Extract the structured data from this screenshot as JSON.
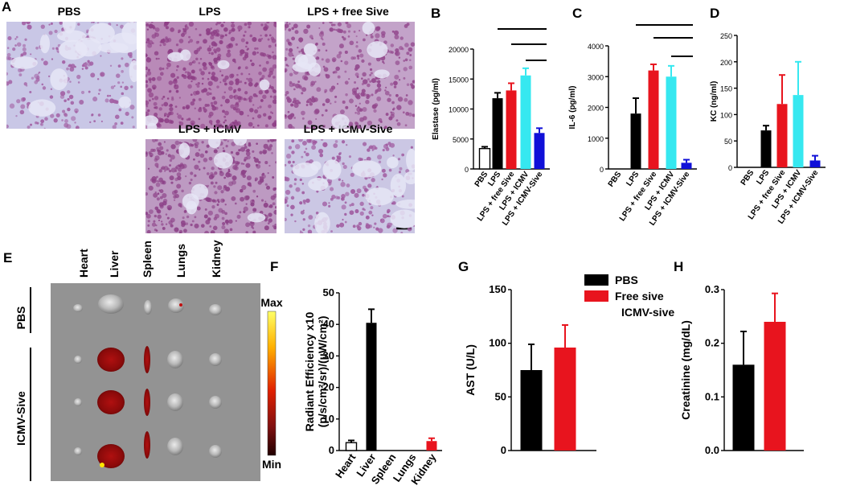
{
  "panel_letters": {
    "A": "A",
    "B": "B",
    "C": "C",
    "D": "D",
    "E": "E",
    "F": "F",
    "G": "G",
    "H": "H"
  },
  "histology": {
    "tiles": [
      {
        "label": "PBS",
        "tone": "#c9c7e6",
        "cell": "#a25fa3",
        "density": 0.35
      },
      {
        "label": "LPS",
        "tone": "#b98ab8",
        "cell": "#8e3f86",
        "density": 0.9
      },
      {
        "label": "LPS + free Sive",
        "tone": "#c3a3c9",
        "cell": "#93488d",
        "density": 0.65
      },
      {
        "label": "LPS + ICMV",
        "tone": "#bd9ac2",
        "cell": "#8d4288",
        "density": 0.75
      },
      {
        "label": "LPS + ICMV-Sive",
        "tone": "#cbc7e4",
        "cell": "#a05aa0",
        "density": 0.4
      }
    ]
  },
  "colors": {
    "black": "#000000",
    "red": "#e8141e",
    "cyan": "#36e8f0",
    "blue": "#1010d8",
    "white": "#ffffff"
  },
  "imaging": {
    "organs": [
      "Heart",
      "Liver",
      "Spleen",
      "Lungs",
      "Kidney"
    ],
    "groups": [
      "PBS",
      "ICMV-Sive"
    ],
    "scale_max": "Max",
    "scale_min": "Min"
  },
  "chart_data": [
    {
      "id": "B",
      "type": "bar",
      "categories": [
        "PBS",
        "LPS",
        "LPS + free Sive",
        "LPS + ICMV",
        "LPS + ICMV-Sive"
      ],
      "values": [
        3400,
        11800,
        13100,
        15600,
        6000
      ],
      "errors": [
        300,
        900,
        1200,
        1200,
        800
      ],
      "fills": [
        "#ffffff",
        "#000000",
        "#e8141e",
        "#36e8f0",
        "#1010d8"
      ],
      "ylabel": "Elastase (pg/ml)",
      "ylim": [
        0,
        20000
      ],
      "yticks": [
        "0",
        "5000",
        "10000",
        "15000",
        "20000"
      ],
      "grid": false
    },
    {
      "id": "C",
      "type": "bar",
      "categories": [
        "PBS",
        "LPS",
        "LPS + free Sive",
        "LPS + ICMV",
        "LPS + ICMV-Sive"
      ],
      "values": [
        0,
        1800,
        3200,
        3000,
        200
      ],
      "errors": [
        0,
        500,
        200,
        350,
        100
      ],
      "fills": [
        "#ffffff",
        "#000000",
        "#e8141e",
        "#36e8f0",
        "#1010d8"
      ],
      "ylabel": "IL-6 (pg/ml)",
      "ylim": [
        0,
        4000
      ],
      "yticks": [
        "0",
        "1000",
        "2000",
        "3000",
        "4000"
      ],
      "grid": false
    },
    {
      "id": "D",
      "type": "bar",
      "categories": [
        "PBS",
        "LPS",
        "LPS + free Sive",
        "LPS + ICMV",
        "LPS + ICMV-Sive"
      ],
      "values": [
        0,
        70,
        120,
        137,
        13
      ],
      "errors": [
        0,
        9,
        55,
        63,
        9
      ],
      "fills": [
        "#ffffff",
        "#000000",
        "#e8141e",
        "#36e8f0",
        "#1010d8"
      ],
      "ylabel": "KC (ng/ml)",
      "ylim": [
        0,
        250
      ],
      "yticks": [
        "0",
        "50",
        "100",
        "150",
        "200",
        "250"
      ],
      "grid": false
    },
    {
      "id": "F",
      "type": "bar",
      "categories": [
        "Heart",
        "Liver",
        "Spleen",
        "Lungs",
        "Kidney"
      ],
      "values": [
        2.5,
        40.5,
        0,
        0,
        3
      ],
      "errors": [
        0.7,
        4.3,
        0,
        0,
        0.9
      ],
      "fills": [
        "#ffffff",
        "#000000",
        "#ffffff",
        "#ffffff",
        "#e8141e"
      ],
      "ylabel_line1": "Radiant Efficiency x10",
      "ylabel_line2": "(p/s/cm²/sr)/(µW/cm²)",
      "ylim": [
        0,
        50
      ],
      "yticks": [
        "0",
        "10",
        "20",
        "30",
        "40",
        "50"
      ],
      "grid": false
    },
    {
      "id": "G",
      "type": "bar",
      "categories": [
        "PBS",
        "Free sive ICMV-sive"
      ],
      "values": [
        75,
        96
      ],
      "errors": [
        24,
        21
      ],
      "fills": [
        "#000000",
        "#e8141e"
      ],
      "ylabel": "AST (U/L)",
      "ylim": [
        0,
        150
      ],
      "yticks": [
        "0",
        "50",
        "100",
        "150"
      ],
      "grid": false
    },
    {
      "id": "H",
      "type": "bar",
      "categories": [
        "PBS",
        "Free sive ICMV-sive"
      ],
      "values": [
        0.16,
        0.24
      ],
      "errors": [
        0.062,
        0.053
      ],
      "fills": [
        "#000000",
        "#e8141e"
      ],
      "ylabel": "Creatinine (mg/dL)",
      "ylim": [
        0,
        0.3
      ],
      "yticks": [
        "0.0",
        "0.1",
        "0.2",
        "0.3"
      ],
      "grid": false
    }
  ],
  "legend": {
    "entries": [
      {
        "label": "PBS",
        "color": "#000000"
      },
      {
        "label": "Free sive",
        "color": "#e8141e"
      },
      {
        "label": "ICMV-sive",
        "color": ""
      }
    ]
  }
}
